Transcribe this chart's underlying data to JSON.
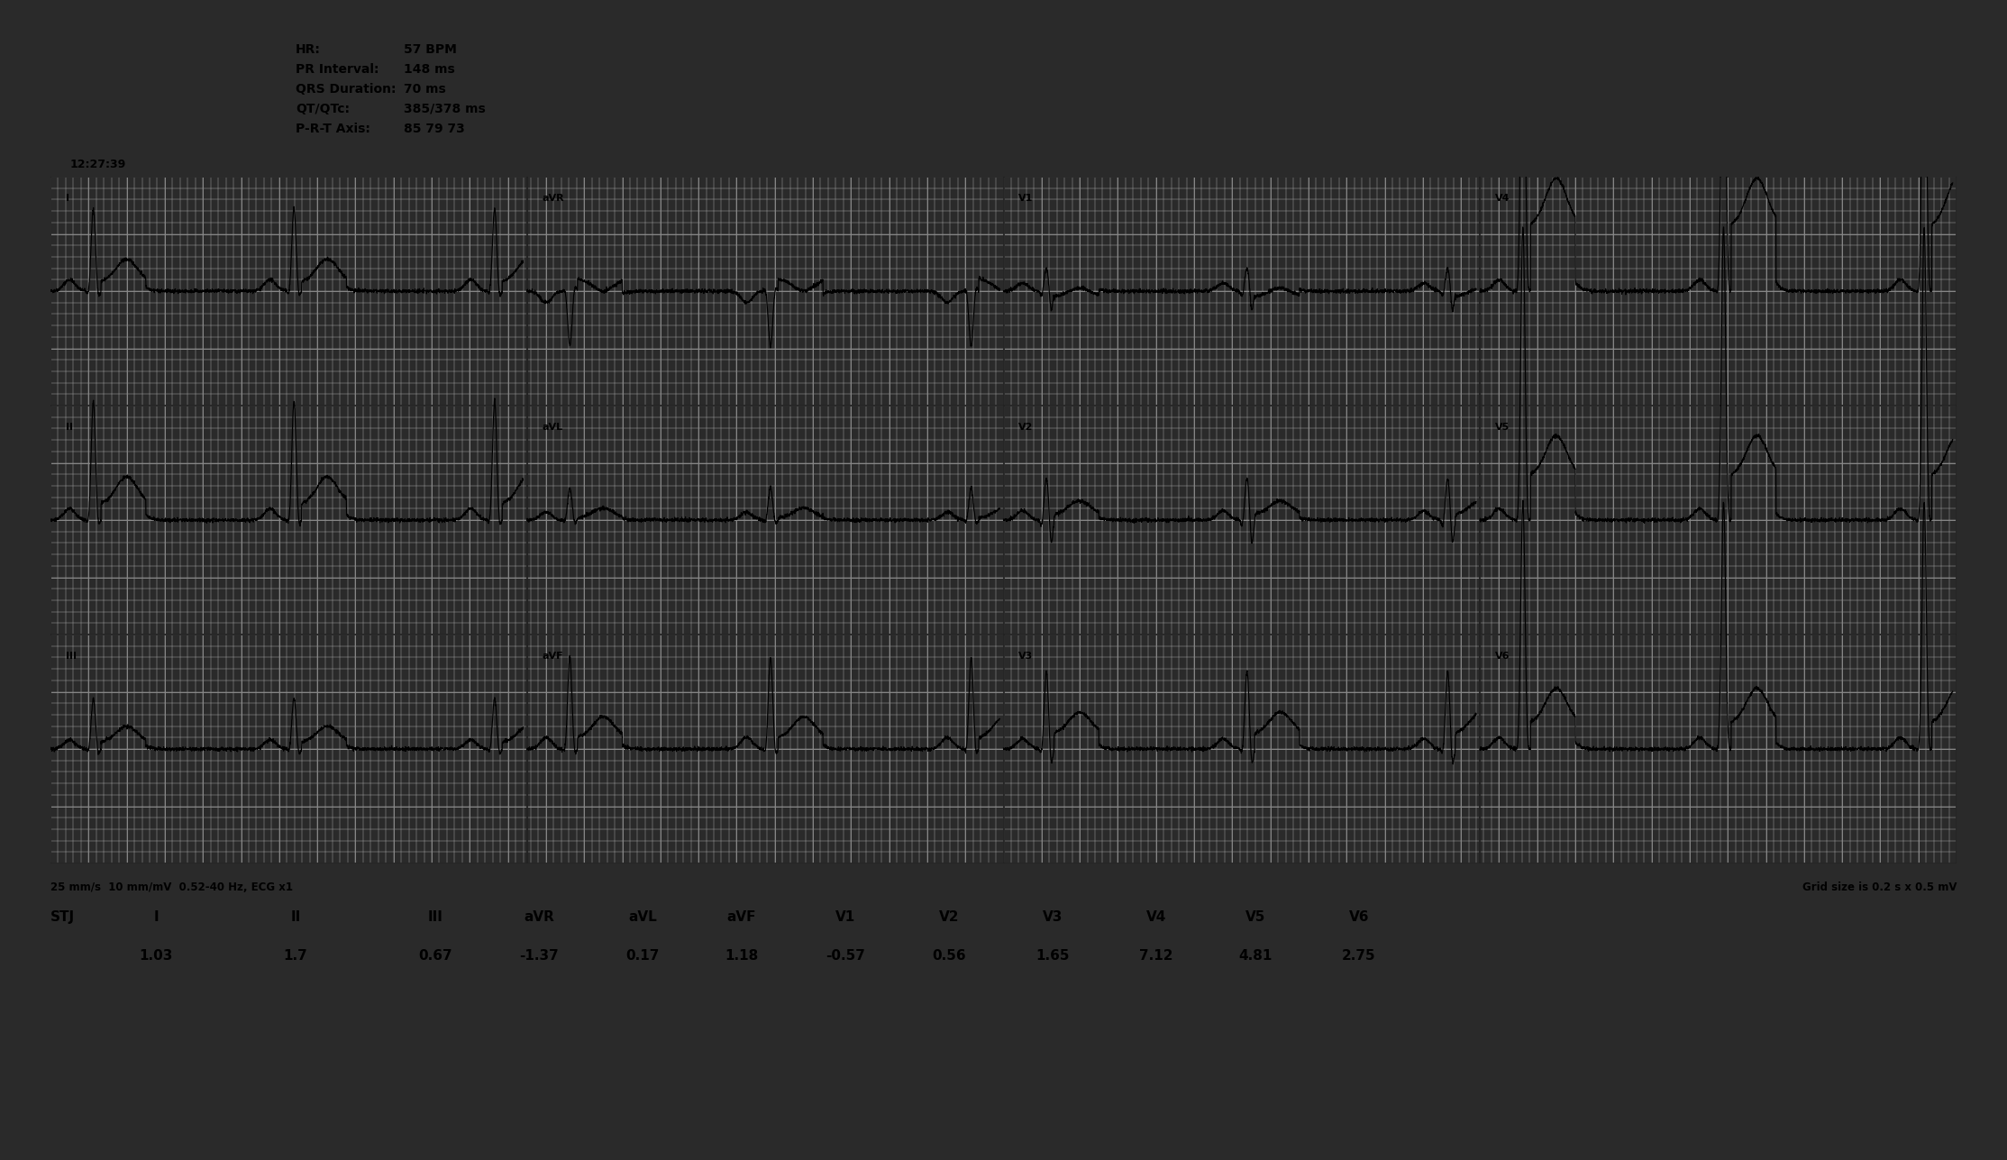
{
  "bg_outer": "#2a2a2a",
  "bg_inner": "#ffffff",
  "ecg_bg": "#d8d8d8",
  "grid_minor_color": "#b8b8b8",
  "grid_major_color": "#888888",
  "grid_border_color": "#222222",
  "ecg_line_color": "#000000",
  "text_color": "#000000",
  "header_text": [
    [
      "HR:",
      "57 BPM"
    ],
    [
      "PR Interval:",
      "148 ms"
    ],
    [
      "QRS Duration:",
      "70 ms"
    ],
    [
      "QT/QTc:",
      "385/378 ms"
    ],
    [
      "P-R-T Axis:",
      "85 79 73"
    ]
  ],
  "timestamp": "12:27:39",
  "bottom_left_text": "25 mm/s  10 mm/mV  0.52-40 Hz, ECG x1",
  "bottom_right_text": "Grid size is 0.2 s x 0.5 mV",
  "lead_labels": [
    "I",
    "II",
    "III",
    "aVR",
    "aVL",
    "aVF",
    "V1",
    "V2",
    "V3",
    "V4",
    "V5",
    "V6"
  ],
  "stj_label": "STJ",
  "stj_values": [
    "1.03",
    "1.7",
    "0.67",
    "-1.37",
    "0.17",
    "1.18",
    "-0.57",
    "0.56",
    "1.65",
    "7.12",
    "4.81",
    "2.75"
  ],
  "figure_width": 22.27,
  "figure_height": 12.87,
  "dpi": 100,
  "hr": 57
}
